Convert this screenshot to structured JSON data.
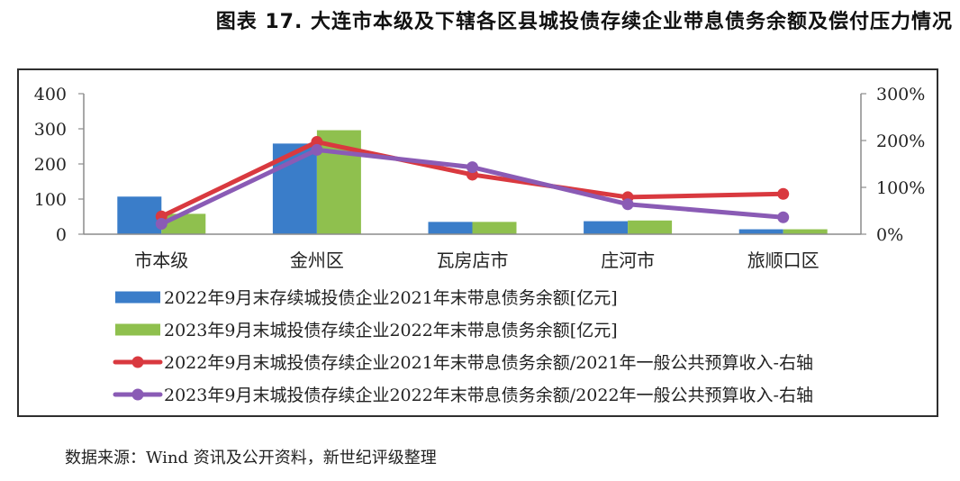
{
  "title": "图表 17. 大连市本级及下辖各区县城投债存续企业带息债务余额及偿付压力情况",
  "source": "数据来源：Wind 资讯及公开资料，新世纪评级整理",
  "colors": {
    "bar1": "#3a7dc9",
    "bar2": "#8fc04e",
    "line1": "#d9393f",
    "line2": "#8a5bb5",
    "axis": "#8c8c8c",
    "frame": "#2f2f2f"
  },
  "chart_data": {
    "type": "bar",
    "categories": [
      "市本级",
      "金州区",
      "瓦房店市",
      "庄河市",
      "旅顺口区"
    ],
    "left_axis": {
      "ylim": [
        0,
        400
      ],
      "ticks": [
        "0",
        "100",
        "200",
        "300",
        "400"
      ]
    },
    "right_axis": {
      "ylim": [
        0,
        300
      ],
      "ticks": [
        "0%",
        "100%",
        "200%",
        "300%"
      ]
    },
    "grid": false,
    "legend_position": "bottom",
    "bar_series": [
      {
        "name": "2022年9月末存续城投债企业2021年末带息债务余额[亿元]",
        "values": [
          107,
          258,
          35,
          37,
          14
        ]
      },
      {
        "name": "2023年9月末城投债存续企业2022年末带息债务余额[亿元]",
        "values": [
          58,
          296,
          35,
          39,
          14
        ]
      }
    ],
    "line_series": [
      {
        "name": "2022年9月末城投债存续企业2021年末带息债务余额/2021年一般公共预算收入-右轴",
        "values": [
          38,
          197,
          127,
          79,
          86
        ]
      },
      {
        "name": "2023年9月末城投债存续企业2022年末带息债务余额/2022年一般公共预算收入-右轴",
        "values": [
          22,
          180,
          143,
          64,
          36
        ]
      }
    ]
  }
}
